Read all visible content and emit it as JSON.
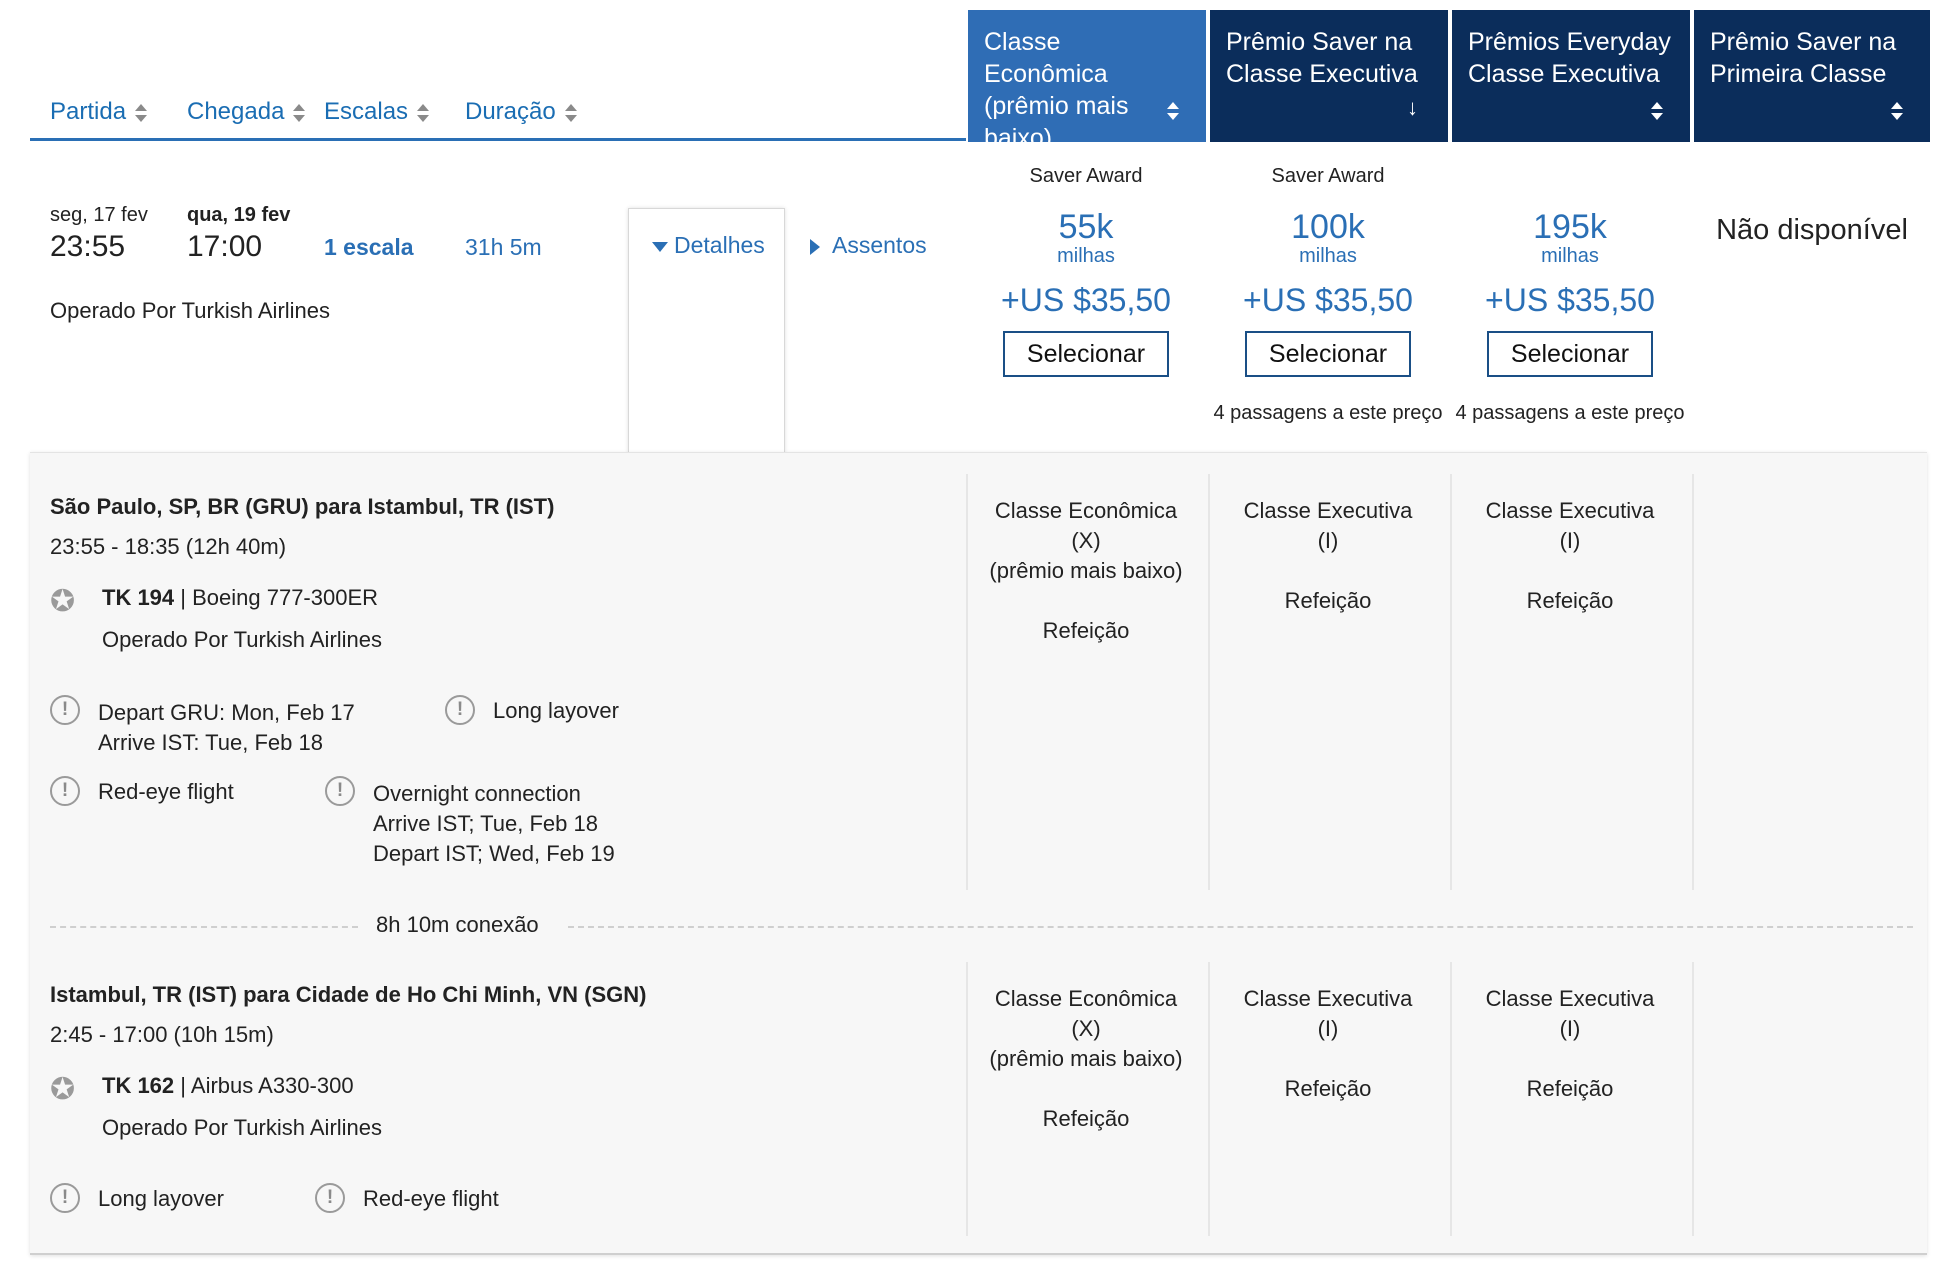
{
  "columns": {
    "departure": "Partida",
    "arrival": "Chegada",
    "stops": "Escalas",
    "duration": "Duração"
  },
  "cabin_headers": [
    {
      "label": "Classe Econômica (prêmio mais baixo)",
      "active": true
    },
    {
      "label": "Prêmio Saver na Classe Executiva",
      "active": false
    },
    {
      "label": "Prêmios Everyday Classe Executiva",
      "active": false
    },
    {
      "label": "Prêmio Saver na Primeira Classe",
      "active": false
    }
  ],
  "colors": {
    "active_header": "#2f6db5",
    "header": "#0b2d5b",
    "link_blue": "#2a6fb5"
  },
  "flight": {
    "depart_day": "seg, 17 fev",
    "depart_time": "23:55",
    "arrive_day": "qua, 19 fev",
    "arrive_time": "17:00",
    "stops": "1 escala",
    "duration": "31h 5m",
    "operated_by": "Operado Por Turkish Airlines",
    "details_label": "Detalhes",
    "seats_label": "Assentos"
  },
  "fares": [
    {
      "tag": "Saver Award",
      "miles": "55k",
      "miles_label": "milhas",
      "tax": "+US $35,50",
      "button": "Selecionar",
      "note": ""
    },
    {
      "tag": "Saver Award",
      "miles": "100k",
      "miles_label": "milhas",
      "tax": "+US $35,50",
      "button": "Selecionar",
      "note": "4 passagens a este preço"
    },
    {
      "tag": "",
      "miles": "195k",
      "miles_label": "milhas",
      "tax": "+US $35,50",
      "button": "Selecionar",
      "note": "4 passagens a este preço"
    },
    {
      "unavailable": "Não disponível"
    }
  ],
  "segments": [
    {
      "route": "São Paulo, SP, BR (GRU) para Istambul, TR (IST)",
      "times": "23:55 - 18:35 (12h 40m)",
      "flight_no": "TK 194",
      "aircraft": "| Boeing 777-300ER",
      "operated_by": "Operado Por Turkish Airlines",
      "warnings": [
        {
          "line1": "Depart GRU: Mon, Feb 17",
          "line2": "Arrive IST: Tue, Feb 18"
        },
        {
          "line1": "Long layover"
        },
        {
          "line1": "Red-eye flight"
        },
        {
          "line1": "Overnight connection",
          "line2": "Arrive IST; Tue, Feb 18",
          "line3": "Depart IST; Wed, Feb 19"
        }
      ],
      "cabins": [
        {
          "l1": "Classe Econômica",
          "l2": "(X)",
          "l3": "(prêmio mais baixo)",
          "meal": "Refeição"
        },
        {
          "l1": "Classe Executiva",
          "l2": "(I)",
          "meal": "Refeição"
        },
        {
          "l1": "Classe Executiva",
          "l2": "(I)",
          "meal": "Refeição"
        }
      ]
    },
    {
      "route": "Istambul, TR (IST) para Cidade de Ho Chi Minh, VN (SGN)",
      "times": "2:45 - 17:00 (10h 15m)",
      "flight_no": "TK 162",
      "aircraft": "| Airbus A330-300",
      "operated_by": "Operado Por Turkish Airlines",
      "warnings": [
        {
          "line1": "Long layover"
        },
        {
          "line1": "Red-eye flight"
        }
      ],
      "cabins": [
        {
          "l1": "Classe Econômica",
          "l2": "(X)",
          "l3": "(prêmio mais baixo)",
          "meal": "Refeição"
        },
        {
          "l1": "Classe Executiva",
          "l2": "(I)",
          "meal": "Refeição"
        },
        {
          "l1": "Classe Executiva",
          "l2": "(I)",
          "meal": "Refeição"
        }
      ]
    }
  ],
  "connection": "8h 10m conexão",
  "warn_glyph": "!"
}
